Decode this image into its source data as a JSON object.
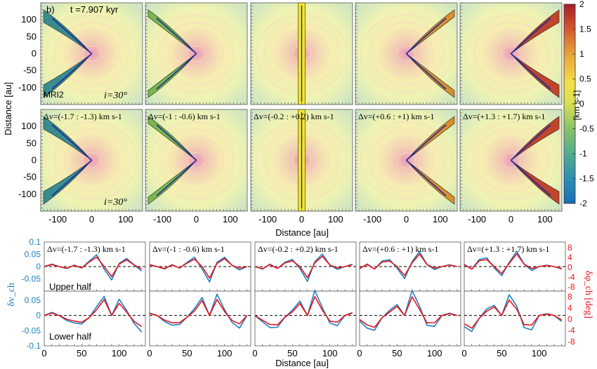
{
  "panel_label": "b)",
  "time_label": "t =7.907 kyr",
  "model_label": "MRI2",
  "inclination_label": "i=30°",
  "colorbar": {
    "unit": "[km s-1]",
    "ticks": [
      "2",
      "1.5",
      "1",
      "0.5",
      "0",
      "-0.5",
      "-1",
      "-1.5",
      "-2"
    ],
    "colors": [
      "#a31e2c",
      "#d2552c",
      "#e8a33c",
      "#f4e04a",
      "#c6da54",
      "#8cc36a",
      "#4fab90",
      "#2d8eb4",
      "#1a6db4"
    ]
  },
  "maps": {
    "ylabel": "Distance [au]",
    "xlabel": "Distance [au]",
    "x_ticks": [
      "-100",
      "0",
      "100"
    ],
    "y_ticks": [
      "100",
      "50",
      "0",
      "-50",
      "-100"
    ],
    "xlim": [
      -150,
      150
    ],
    "ylim": [
      -150,
      150
    ]
  },
  "channels": [
    {
      "label": "Δv=(-1.7 : -1.3) km s-1",
      "color": "#3a8c8e",
      "side": -1,
      "width": 1.0
    },
    {
      "label": "Δv=(-1 : -0.6) km s-1",
      "color": "#7ab84c",
      "side": -1,
      "width": 0.55
    },
    {
      "label": "Δv=(-0.2 : +0.2) km s-1",
      "color": "#f5e62a",
      "side": 0,
      "width": 0.0
    },
    {
      "label": "Δv=(+0.6 : +1) km s-1",
      "color": "#d8902c",
      "side": 1,
      "width": 0.55
    },
    {
      "label": "Δv=(+1.3 : +1.7) km s-1",
      "color": "#c0452a",
      "side": 1,
      "width": 1.0
    }
  ],
  "chart_data": {
    "type": "line",
    "xlabel": "Distance [au]",
    "ylabel_left": "δv_ch",
    "ylabel_right": "δφ_ch [deg]",
    "x_ticks": [
      "0",
      "50",
      "100"
    ],
    "upper": {
      "label": "Upper half",
      "ylim_left": [
        -0.1,
        0.1
      ],
      "left_ticks": [
        "0.1",
        "0.05",
        "0",
        "-0.05"
      ],
      "right_ticks": [
        "8",
        "4",
        "0",
        "-4",
        "-8"
      ],
      "x": [
        0,
        10,
        20,
        30,
        40,
        50,
        60,
        70,
        80,
        90,
        100,
        110,
        120,
        130
      ],
      "series": [
        {
          "color": "#1f7fc0",
          "values": [
            0.0,
            0.01,
            0.0,
            -0.01,
            0.01,
            -0.01,
            0.03,
            0.05,
            -0.01,
            -0.06,
            0.02,
            0.06,
            0.01,
            -0.02
          ]
        },
        {
          "color": "#e8141c",
          "values": [
            0.0,
            0.008,
            0.0,
            -0.008,
            0.008,
            -0.01,
            0.025,
            0.04,
            0.0,
            -0.045,
            0.015,
            0.05,
            0.01,
            -0.01
          ]
        }
      ]
    },
    "lower": {
      "label": "Lower half",
      "ylim_left": [
        -0.1,
        0.08
      ],
      "left_ticks": [
        "0.05",
        "0",
        "-0.05",
        "-0.1"
      ],
      "right_ticks": [
        "8",
        "4",
        "0",
        "-4",
        "-8"
      ],
      "x": [
        0,
        10,
        20,
        30,
        40,
        50,
        60,
        70,
        80,
        90,
        100,
        110,
        120,
        130
      ],
      "series": [
        {
          "color": "#1f7fc0",
          "values": [
            0.0,
            0.01,
            0.0,
            -0.02,
            -0.04,
            -0.05,
            -0.01,
            0.03,
            0.06,
            0.0,
            0.08,
            0.03,
            -0.04,
            -0.06
          ]
        },
        {
          "color": "#e8141c",
          "values": [
            0.0,
            0.008,
            0.0,
            -0.015,
            -0.03,
            -0.04,
            -0.01,
            0.02,
            0.05,
            0.0,
            0.06,
            0.02,
            -0.03,
            -0.04
          ]
        }
      ]
    }
  }
}
